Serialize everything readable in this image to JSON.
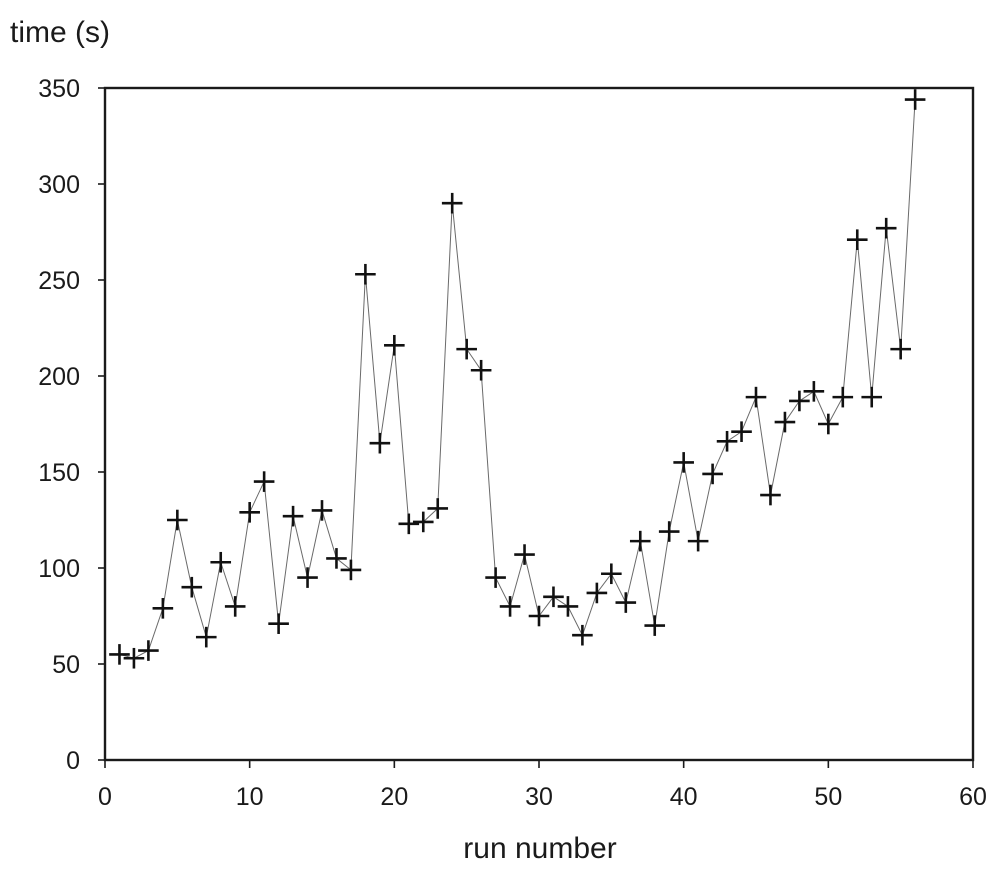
{
  "chart_data": {
    "type": "line",
    "title": "",
    "xlabel": "run number",
    "ylabel": "time (s)",
    "xlim": [
      0,
      60
    ],
    "ylim": [
      0,
      350
    ],
    "xticks": [
      0,
      10,
      20,
      30,
      40,
      50,
      60
    ],
    "yticks": [
      0,
      50,
      100,
      150,
      200,
      250,
      300,
      350
    ],
    "grid": false,
    "legend": "none",
    "series": [
      {
        "marker": "plus",
        "x": [
          1,
          2,
          3,
          4,
          5,
          6,
          7,
          8,
          9,
          10,
          11,
          12,
          13,
          14,
          15,
          16,
          17,
          18,
          19,
          20,
          21,
          22,
          23,
          24,
          25,
          26,
          27,
          28,
          29,
          30,
          31,
          32,
          33,
          34,
          35,
          36,
          37,
          38,
          39,
          40,
          41,
          42,
          43,
          44,
          45,
          46,
          47,
          48,
          49,
          50,
          51,
          52,
          53,
          54,
          55,
          56
        ],
        "y": [
          55,
          53,
          57,
          79,
          125,
          90,
          64,
          103,
          80,
          129,
          145,
          71,
          127,
          95,
          130,
          105,
          99,
          253,
          165,
          216,
          123,
          124,
          131,
          290,
          214,
          203,
          95,
          80,
          107,
          75,
          85,
          80,
          65,
          87,
          97,
          82,
          114,
          70,
          119,
          155,
          114,
          149,
          166,
          171,
          189,
          138,
          176,
          187,
          192,
          175,
          189,
          271,
          189,
          277,
          214,
          344
        ]
      }
    ]
  }
}
